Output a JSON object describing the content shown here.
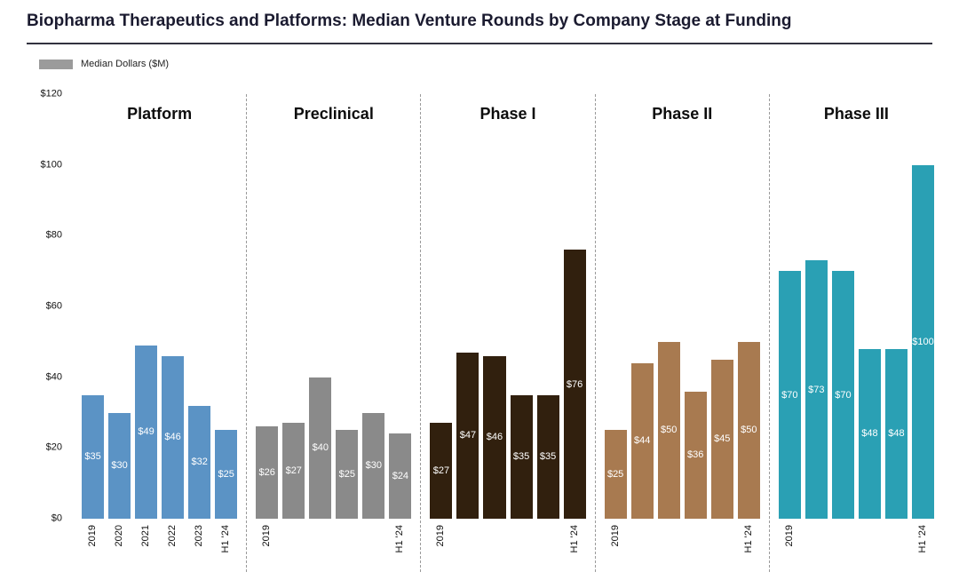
{
  "title": "Biopharma Therapeutics and Platforms: Median Venture Rounds by Company Stage at Funding",
  "legend": {
    "label": "Median Dollars ($M)",
    "swatch_color": "#9b9b9b"
  },
  "chart_data": {
    "type": "bar",
    "title": "Biopharma Therapeutics and Platforms: Median Venture Rounds by Company Stage at Funding",
    "xlabel": "",
    "ylabel": "Median Dollars ($M)",
    "ylim": [
      0,
      120
    ],
    "grid": false,
    "legend_position": "top-left",
    "y_ticks": [
      "$0",
      "$20",
      "$40",
      "$60",
      "$80",
      "$100",
      "$120"
    ],
    "y_tick_values": [
      0,
      20,
      40,
      60,
      80,
      100,
      120
    ],
    "categories": [
      "2019",
      "2020",
      "2021",
      "2022",
      "2023",
      "H1 '24"
    ],
    "groups": [
      {
        "label": "Platform",
        "color": "#5b93c5",
        "values": [
          35,
          30,
          49,
          46,
          32,
          25
        ],
        "bar_labels": [
          "$35",
          "$30",
          "$49",
          "$46",
          "$32",
          "$25"
        ],
        "tick_labels": [
          "2019",
          "2020",
          "2021",
          "2022",
          "2023",
          "H1 '24"
        ]
      },
      {
        "label": "Preclinical",
        "color": "#8a8a8a",
        "values": [
          26,
          27,
          40,
          25,
          30,
          24
        ],
        "bar_labels": [
          "$26",
          "$27",
          "$40",
          "$25",
          "$30",
          "$24"
        ],
        "tick_labels": [
          "2019",
          "",
          "",
          "",
          "",
          "H1 '24"
        ]
      },
      {
        "label": "Phase I",
        "color": "#31200e",
        "values": [
          27,
          47,
          46,
          35,
          35,
          76
        ],
        "bar_labels": [
          "$27",
          "$47",
          "$46",
          "$35",
          "$35",
          "$76"
        ],
        "tick_labels": [
          "2019",
          "",
          "",
          "",
          "",
          "H1 '24"
        ]
      },
      {
        "label": "Phase II",
        "color": "#a87a50",
        "values": [
          25,
          44,
          50,
          36,
          45,
          50
        ],
        "bar_labels": [
          "$25",
          "$44",
          "$50",
          "$36",
          "$45",
          "$50"
        ],
        "tick_labels": [
          "2019",
          "",
          "",
          "",
          "",
          "H1 '24"
        ]
      },
      {
        "label": "Phase III",
        "color": "#2aa0b4",
        "values": [
          70,
          73,
          70,
          48,
          48,
          100
        ],
        "bar_labels": [
          "$70",
          "$73",
          "$70",
          "$48",
          "$48",
          "$100"
        ],
        "tick_labels": [
          "2019",
          "",
          "",
          "",
          "",
          "H1 '24"
        ]
      }
    ]
  }
}
